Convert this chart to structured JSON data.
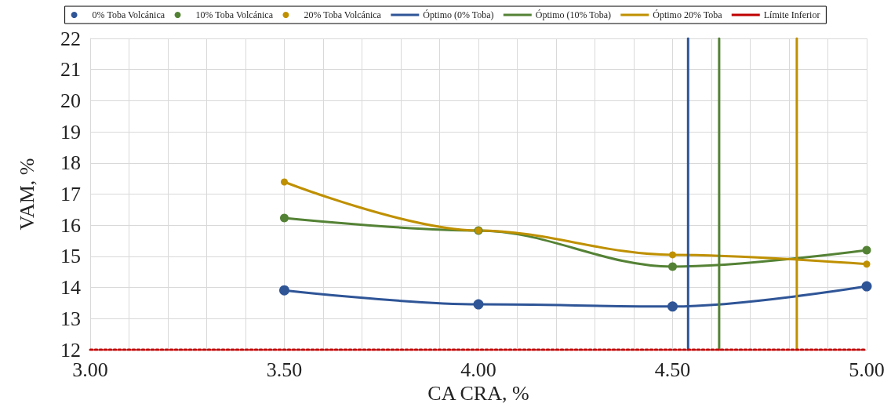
{
  "chart_data": {
    "type": "line",
    "xlabel": "CA CRA, %",
    "ylabel": "VAM, %",
    "xlim": [
      3.0,
      5.0
    ],
    "xticks": [
      {
        "value": 3.0,
        "label": "3.00"
      },
      {
        "value": 3.1,
        "label": null
      },
      {
        "value": 3.2,
        "label": null
      },
      {
        "value": 3.3,
        "label": null
      },
      {
        "value": 3.4,
        "label": null
      },
      {
        "value": 3.5,
        "label": "3.50"
      },
      {
        "value": 3.6,
        "label": null
      },
      {
        "value": 3.7,
        "label": null
      },
      {
        "value": 3.8,
        "label": null
      },
      {
        "value": 3.9,
        "label": null
      },
      {
        "value": 4.0,
        "label": "4.00"
      },
      {
        "value": 4.1,
        "label": null
      },
      {
        "value": 4.2,
        "label": null
      },
      {
        "value": 4.3,
        "label": null
      },
      {
        "value": 4.4,
        "label": null
      },
      {
        "value": 4.5,
        "label": "4.50"
      },
      {
        "value": 4.6,
        "label": null
      },
      {
        "value": 4.7,
        "label": null
      },
      {
        "value": 4.8,
        "label": null
      },
      {
        "value": 4.9,
        "label": null
      },
      {
        "value": 5.0,
        "label": "5.00"
      }
    ],
    "ylim": [
      12,
      22
    ],
    "yticks": [
      12,
      13,
      14,
      15,
      16,
      17,
      18,
      19,
      20,
      21,
      22
    ],
    "grid": true,
    "legend": "top left",
    "marker": "circle",
    "line_style": "solid",
    "series": [
      {
        "name": "0% Toba Volcánica",
        "color": "#2f5597",
        "x": [
          3.5,
          4.0,
          4.5,
          5.0
        ],
        "values": [
          13.91,
          13.46,
          13.39,
          14.04
        ]
      },
      {
        "name": "10% Toba Volcánica",
        "color": "#548235",
        "x": [
          3.5,
          4.0,
          4.5,
          5.0
        ],
        "values": [
          16.23,
          15.83,
          14.67,
          15.2
        ]
      },
      {
        "name": "20% Toba Volcánica",
        "color": "#bf9000",
        "x": [
          3.5,
          4.0,
          4.5,
          5.0
        ],
        "values": [
          17.39,
          15.83,
          15.05,
          14.75
        ]
      },
      {
        "name": "Óptimo (0% Toba)",
        "color": "#2f5597",
        "marker": "none",
        "x": [
          4.54,
          4.54
        ],
        "values": [
          12,
          22
        ]
      },
      {
        "name": "Óptimo (10% Toba)",
        "color": "#548235",
        "marker": "none",
        "x": [
          4.62,
          4.62
        ],
        "values": [
          12,
          22
        ]
      },
      {
        "name": "Óptimo 20% Toba",
        "color": "#bf9000",
        "marker": "none",
        "x": [
          4.82,
          4.82
        ],
        "values": [
          12,
          22
        ]
      },
      {
        "name": "Límite Inferior",
        "color": "#c00000",
        "marker": "none",
        "line_style": "dotted",
        "x": [
          3.0,
          5.0
        ],
        "values": [
          12,
          12
        ]
      }
    ]
  }
}
